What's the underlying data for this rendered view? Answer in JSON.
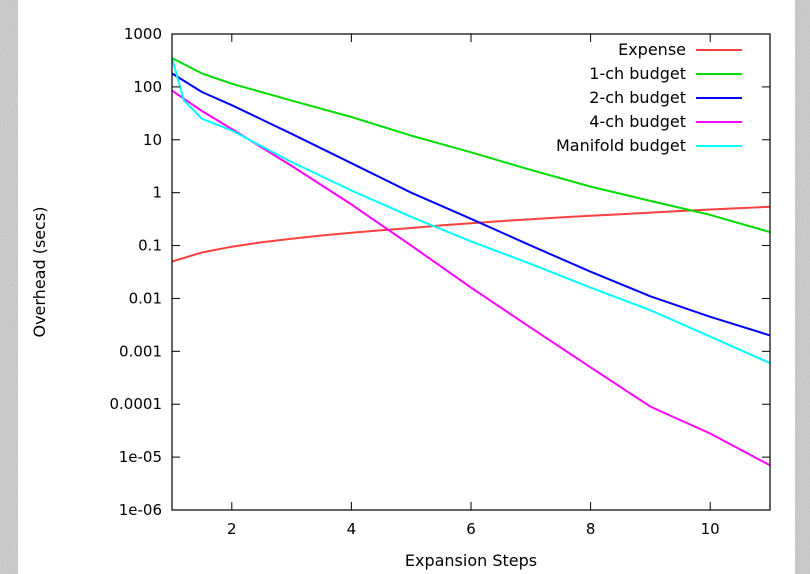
{
  "chart_data": {
    "type": "line",
    "title": "",
    "xlabel": "Expansion Steps",
    "ylabel": "Overhead (secs)",
    "xscale": "linear",
    "yscale": "log",
    "xlim": [
      1,
      11
    ],
    "ylim": [
      1e-06,
      1000
    ],
    "xticks": [
      2,
      4,
      6,
      8,
      10
    ],
    "xtick_labels": [
      "2",
      "4",
      "6",
      "8",
      "10"
    ],
    "yticks": [
      1e-06,
      1e-05,
      0.0001,
      0.001,
      0.01,
      0.1,
      1,
      10,
      100,
      1000
    ],
    "ytick_labels": [
      "1e-06",
      "1e-05",
      "0.0001",
      "0.001",
      "0.01",
      "0.1",
      "1",
      "10",
      "100",
      "1000"
    ],
    "grid": false,
    "legend_position": "top-right",
    "series": [
      {
        "name": "Expense",
        "color": "#ff4040",
        "x": [
          1,
          1.5,
          2,
          2.5,
          3,
          3.5,
          4,
          4.5,
          5,
          5.5,
          6,
          6.5,
          7,
          7.5,
          8,
          8.5,
          9,
          9.5,
          10,
          10.5,
          11
        ],
        "y": [
          0.05,
          0.074,
          0.095,
          0.115,
          0.135,
          0.155,
          0.175,
          0.195,
          0.215,
          0.24,
          0.265,
          0.29,
          0.315,
          0.34,
          0.365,
          0.39,
          0.42,
          0.45,
          0.48,
          0.51,
          0.54
        ]
      },
      {
        "name": "1-ch budget",
        "color": "#00dd00",
        "x": [
          1,
          1.5,
          2,
          3,
          4,
          5,
          6,
          7,
          8,
          9,
          10,
          11
        ],
        "y": [
          350,
          180,
          115,
          55,
          27,
          12,
          5.8,
          2.7,
          1.3,
          0.7,
          0.38,
          0.18
        ]
      },
      {
        "name": "2-ch budget",
        "color": "#0000ff",
        "x": [
          1,
          1.5,
          2,
          3,
          4,
          5,
          6,
          7,
          8,
          9,
          10,
          11
        ],
        "y": [
          180,
          80,
          45,
          13,
          3.6,
          1.0,
          0.32,
          0.1,
          0.032,
          0.011,
          0.0045,
          0.002
        ]
      },
      {
        "name": "4-ch budget",
        "color": "#ff00ff",
        "x": [
          1,
          1.5,
          2,
          3,
          4,
          5,
          6,
          7,
          8,
          9,
          10,
          11
        ],
        "y": [
          85,
          35,
          16,
          3.2,
          0.6,
          0.1,
          0.016,
          0.0028,
          0.0005,
          9e-05,
          2.8e-05,
          7e-06
        ]
      },
      {
        "name": "Manifold budget",
        "color": "#00ffff",
        "x": [
          1,
          1.2,
          1.5,
          2,
          3,
          4,
          5,
          6,
          7,
          8,
          9,
          10,
          11
        ],
        "y": [
          350,
          55,
          25,
          15,
          3.8,
          1.1,
          0.35,
          0.12,
          0.045,
          0.016,
          0.006,
          0.0019,
          0.0006
        ]
      }
    ]
  }
}
